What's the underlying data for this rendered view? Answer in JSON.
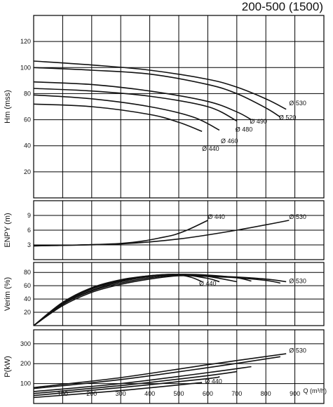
{
  "title": "200-500 (1500)",
  "chart_data": {
    "type": "line",
    "x_axis": {
      "label": "Q (m³/h)",
      "range": [
        0,
        1000
      ],
      "ticks": [
        100,
        200,
        300,
        400,
        500,
        600,
        700,
        800,
        900
      ]
    },
    "panels": [
      {
        "id": "head",
        "ylabel": "Hm (mss)",
        "ylim": [
          0,
          140
        ],
        "yticks": [
          20,
          40,
          60,
          80,
          100,
          120
        ],
        "grid": true,
        "series": [
          {
            "name": "Ø 530",
            "x": [
              0,
              200,
              400,
              600,
              700,
              800,
              870
            ],
            "y": [
              105,
              102,
              98,
              91,
              85,
              76,
              68
            ]
          },
          {
            "name": "Ø 520",
            "x": [
              0,
              200,
              400,
              600,
              700,
              800,
              850
            ],
            "y": [
              100,
              98,
              95,
              87,
              80,
              69,
              62
            ]
          },
          {
            "name": "Ø 490",
            "x": [
              0,
              200,
              400,
              600,
              700,
              750
            ],
            "y": [
              89,
              87,
              82,
              74,
              66,
              60
            ]
          },
          {
            "name": "Ø 480",
            "x": [
              0,
              200,
              400,
              600,
              700
            ],
            "y": [
              84,
              82,
              78,
              70,
              59
            ]
          },
          {
            "name": "Ø 460",
            "x": [
              0,
              200,
              400,
              550,
              640
            ],
            "y": [
              79,
              76,
              70,
              62,
              52
            ]
          },
          {
            "name": "Ø 440",
            "x": [
              0,
              200,
              400,
              500,
              580
            ],
            "y": [
              72,
              70,
              64,
              58,
              51
            ]
          }
        ],
        "labels": [
          {
            "text": "Ø 530",
            "x": 880,
            "y": 71
          },
          {
            "text": "Ø 520",
            "x": 845,
            "y": 60
          },
          {
            "text": "Ø 490",
            "x": 745,
            "y": 57
          },
          {
            "text": "Ø 480",
            "x": 695,
            "y": 51
          },
          {
            "text": "Ø 460",
            "x": 645,
            "y": 42
          },
          {
            "text": "Ø 440",
            "x": 580,
            "y": 36
          }
        ]
      },
      {
        "id": "npsh",
        "ylabel": "ENPY (m)",
        "ylim": [
          0,
          12
        ],
        "yticks": [
          3,
          6,
          9
        ],
        "grid": true,
        "series": [
          {
            "name": "Ø 440",
            "x": [
              0,
              300,
              450,
              520,
              600
            ],
            "y": [
              2.8,
              3.3,
              4.6,
              5.8,
              8.0
            ]
          },
          {
            "name": "Ø 530",
            "x": [
              0,
              300,
              500,
              700,
              880
            ],
            "y": [
              2.8,
              3.2,
              4.2,
              6.0,
              8.0
            ]
          }
        ],
        "labels": [
          {
            "text": "Ø 440",
            "x": 600,
            "y": 8.3
          },
          {
            "text": "Ø 530",
            "x": 880,
            "y": 8.3
          }
        ]
      },
      {
        "id": "efficiency",
        "ylabel": "Verim (%)",
        "ylim": [
          0,
          95
        ],
        "yticks": [
          20,
          40,
          60,
          80
        ],
        "grid": true,
        "series": [
          {
            "name": "Ø 530",
            "x": [
              0,
              100,
              200,
              300,
              400,
              500,
              600,
              700,
              800,
              870
            ],
            "y": [
              0,
              32,
              52,
              64,
              72,
              76,
              75,
              73,
              70,
              66
            ]
          },
          {
            "name": "Ø 520",
            "x": [
              0,
              100,
              200,
              300,
              400,
              500,
              600,
              700,
              800,
              850
            ],
            "y": [
              0,
              30,
              50,
              62,
              70,
              75,
              74,
              72,
              68,
              64
            ]
          },
          {
            "name": "Ø 490",
            "x": [
              0,
              100,
              200,
              300,
              400,
              500,
              600,
              700,
              750
            ],
            "y": [
              0,
              32,
              53,
              66,
              74,
              77,
              76,
              72,
              67
            ]
          },
          {
            "name": "Ø 480",
            "x": [
              0,
              100,
              200,
              300,
              400,
              500,
              600,
              700
            ],
            "y": [
              0,
              33,
              55,
              67,
              74,
              77,
              74,
              66
            ]
          },
          {
            "name": "Ø 460",
            "x": [
              0,
              100,
              200,
              300,
              400,
              500,
              600,
              640
            ],
            "y": [
              0,
              34,
              56,
              68,
              75,
              77,
              71,
              66
            ]
          },
          {
            "name": "Ø 440",
            "x": [
              0,
              100,
              200,
              300,
              400,
              480,
              540,
              580
            ],
            "y": [
              0,
              35,
              57,
              69,
              75,
              77,
              73,
              66
            ]
          }
        ],
        "labels": [
          {
            "text": "Ø 530",
            "x": 880,
            "y": 64
          },
          {
            "text": "Ø 440",
            "x": 570,
            "y": 60
          }
        ]
      },
      {
        "id": "power",
        "ylabel": "P(kW)",
        "ylim": [
          0,
          370
        ],
        "yticks": [
          100,
          200,
          300
        ],
        "grid": true,
        "series": [
          {
            "name": "Ø 530",
            "x": [
              0,
              300,
              600,
              870
            ],
            "y": [
              80,
              130,
              195,
              250
            ]
          },
          {
            "name": "Ø 520",
            "x": [
              0,
              300,
              600,
              850
            ],
            "y": [
              75,
              120,
              180,
              235
            ]
          },
          {
            "name": "Ø 490",
            "x": [
              0,
              300,
              600,
              750
            ],
            "y": [
              60,
              100,
              155,
              185
            ]
          },
          {
            "name": "Ø 480",
            "x": [
              0,
              300,
              600,
              700
            ],
            "y": [
              50,
              90,
              140,
              160
            ]
          },
          {
            "name": "Ø 460",
            "x": [
              0,
              300,
              600,
              640
            ],
            "y": [
              40,
              80,
              125,
              135
            ]
          },
          {
            "name": "Ø 440",
            "x": [
              0,
              300,
              580
            ],
            "y": [
              30,
              65,
              105
            ]
          }
        ],
        "labels": [
          {
            "text": "Ø 530",
            "x": 880,
            "y": 255
          },
          {
            "text": "Ø 440",
            "x": 590,
            "y": 100
          }
        ]
      }
    ]
  }
}
